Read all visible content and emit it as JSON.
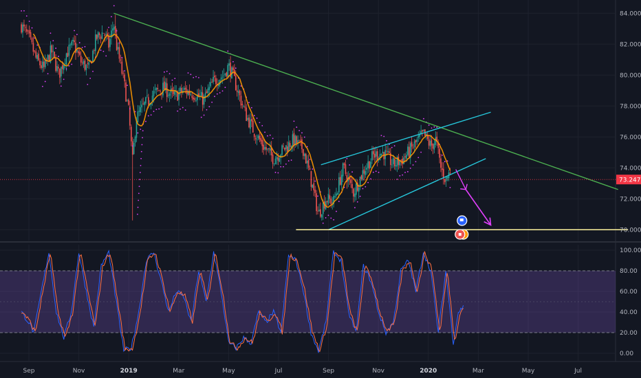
{
  "chart_data": {
    "type": "candlestick",
    "price_axis": {
      "ticks": [
        "84.000",
        "82.000",
        "80.000",
        "78.000",
        "76.000",
        "74.000",
        "72.000",
        "70.000"
      ],
      "tick_values": [
        84,
        82,
        80,
        78,
        76,
        74,
        72,
        70
      ],
      "range": [
        69.3,
        84.5
      ]
    },
    "oscillator_axis": {
      "ticks": [
        "100.00",
        "80.00",
        "60.00",
        "40.00",
        "20.00",
        "0.00"
      ],
      "tick_values": [
        100,
        80,
        60,
        40,
        20,
        0
      ],
      "range": [
        -4,
        104
      ],
      "band": [
        20,
        80
      ]
    },
    "time_axis": {
      "labels": [
        {
          "text": "Sep",
          "month": 0,
          "bold": false
        },
        {
          "text": "Nov",
          "month": 2,
          "bold": false
        },
        {
          "text": "2019",
          "month": 4,
          "bold": true
        },
        {
          "text": "Mar",
          "month": 6,
          "bold": false
        },
        {
          "text": "May",
          "month": 8,
          "bold": false
        },
        {
          "text": "Jul",
          "month": 10,
          "bold": false
        },
        {
          "text": "Sep",
          "month": 12,
          "bold": false
        },
        {
          "text": "Nov",
          "month": 14,
          "bold": false
        },
        {
          "text": "2020",
          "month": 16,
          "bold": true
        },
        {
          "text": "Mar",
          "month": 18,
          "bold": false
        },
        {
          "text": "May",
          "month": 20,
          "bold": false
        },
        {
          "text": "Jul",
          "month": 22,
          "bold": false
        }
      ]
    },
    "last_price": {
      "value": 73.247,
      "label": "73.247"
    },
    "close_path": [
      [
        -0.3,
        83.2
      ],
      [
        0.0,
        82.4
      ],
      [
        0.3,
        81.0
      ],
      [
        0.6,
        80.4
      ],
      [
        0.9,
        81.6
      ],
      [
        1.2,
        80.0
      ],
      [
        1.5,
        81.4
      ],
      [
        1.8,
        82.0
      ],
      [
        2.1,
        80.8
      ],
      [
        2.4,
        80.4
      ],
      [
        2.7,
        82.4
      ],
      [
        3.0,
        82.8
      ],
      [
        3.2,
        81.9
      ],
      [
        3.4,
        83.4
      ],
      [
        3.5,
        82.0
      ],
      [
        3.65,
        80.8
      ],
      [
        3.8,
        79.6
      ],
      [
        4.0,
        77.6
      ],
      [
        4.15,
        74.4
      ],
      [
        4.3,
        77.2
      ],
      [
        4.6,
        78.0
      ],
      [
        5.0,
        78.8
      ],
      [
        5.4,
        79.2
      ],
      [
        5.8,
        78.6
      ],
      [
        6.2,
        79.0
      ],
      [
        6.6,
        78.8
      ],
      [
        7.0,
        78.4
      ],
      [
        7.4,
        79.6
      ],
      [
        7.8,
        80.0
      ],
      [
        8.0,
        80.6
      ],
      [
        8.2,
        79.8
      ],
      [
        8.4,
        78.8
      ],
      [
        8.7,
        77.4
      ],
      [
        9.0,
        76.4
      ],
      [
        9.4,
        75.4
      ],
      [
        9.8,
        74.6
      ],
      [
        10.2,
        75.2
      ],
      [
        10.6,
        75.8
      ],
      [
        11.0,
        75.2
      ],
      [
        11.3,
        73.2
      ],
      [
        11.6,
        71.0
      ],
      [
        11.9,
        72.0
      ],
      [
        12.2,
        71.8
      ],
      [
        12.6,
        74.0
      ],
      [
        13.0,
        72.4
      ],
      [
        13.4,
        73.8
      ],
      [
        13.8,
        74.8
      ],
      [
        14.2,
        75.0
      ],
      [
        14.6,
        74.2
      ],
      [
        15.0,
        74.6
      ],
      [
        15.4,
        75.4
      ],
      [
        15.8,
        76.2
      ],
      [
        16.1,
        75.4
      ],
      [
        16.3,
        75.8
      ],
      [
        16.5,
        74.0
      ],
      [
        16.7,
        73.2
      ],
      [
        16.9,
        73.9
      ]
    ],
    "stoch_path": [
      [
        -0.3,
        40
      ],
      [
        0.0,
        30
      ],
      [
        0.2,
        20
      ],
      [
        0.5,
        60
      ],
      [
        0.8,
        98
      ],
      [
        1.1,
        40
      ],
      [
        1.4,
        15
      ],
      [
        1.7,
        40
      ],
      [
        2.0,
        98
      ],
      [
        2.3,
        60
      ],
      [
        2.6,
        25
      ],
      [
        2.9,
        85
      ],
      [
        3.2,
        98
      ],
      [
        3.5,
        50
      ],
      [
        3.8,
        3
      ],
      [
        4.1,
        5
      ],
      [
        4.4,
        40
      ],
      [
        4.7,
        90
      ],
      [
        5.0,
        98
      ],
      [
        5.3,
        70
      ],
      [
        5.6,
        40
      ],
      [
        5.9,
        60
      ],
      [
        6.2,
        55
      ],
      [
        6.5,
        30
      ],
      [
        6.8,
        80
      ],
      [
        7.1,
        50
      ],
      [
        7.4,
        98
      ],
      [
        7.7,
        60
      ],
      [
        8.0,
        10
      ],
      [
        8.3,
        5
      ],
      [
        8.6,
        15
      ],
      [
        8.9,
        10
      ],
      [
        9.2,
        40
      ],
      [
        9.5,
        30
      ],
      [
        9.8,
        40
      ],
      [
        10.1,
        20
      ],
      [
        10.4,
        95
      ],
      [
        10.7,
        90
      ],
      [
        11.0,
        60
      ],
      [
        11.3,
        20
      ],
      [
        11.6,
        2
      ],
      [
        11.9,
        30
      ],
      [
        12.2,
        98
      ],
      [
        12.5,
        90
      ],
      [
        12.8,
        40
      ],
      [
        13.1,
        20
      ],
      [
        13.4,
        85
      ],
      [
        13.7,
        70
      ],
      [
        14.0,
        40
      ],
      [
        14.3,
        20
      ],
      [
        14.6,
        30
      ],
      [
        14.9,
        80
      ],
      [
        15.2,
        90
      ],
      [
        15.5,
        60
      ],
      [
        15.8,
        98
      ],
      [
        16.1,
        80
      ],
      [
        16.4,
        20
      ],
      [
        16.7,
        80
      ],
      [
        17.0,
        10
      ],
      [
        17.2,
        40
      ],
      [
        17.4,
        45
      ]
    ],
    "trendlines": [
      {
        "name": "",
        "color": "#4caf50",
        "from": [
          3.4,
          84.0
        ],
        "to": [
          23.6,
          72.6
        ]
      },
      {
        "name": "",
        "color": "#26c6da",
        "from": [
          11.7,
          74.2
        ],
        "to": [
          18.5,
          77.6
        ]
      },
      {
        "name": "",
        "color": "#26c6da",
        "from": [
          12.0,
          70.0
        ],
        "to": [
          18.3,
          74.6
        ]
      },
      {
        "name": "",
        "color": "#fff59d",
        "from": [
          10.7,
          70.0
        ],
        "to": [
          24.0,
          70.0
        ]
      }
    ],
    "arrows": [
      {
        "name": "",
        "color": "#e040fb",
        "from": [
          17.5,
          72.6
        ],
        "to": [
          18.5,
          70.3
        ]
      }
    ],
    "last_price_line_color": "#f23645",
    "up_color": "#26a69a",
    "down_color": "#ef5350",
    "ma_color": "#ff9800",
    "sar_color": "#e040fb",
    "k_color": "#2962ff",
    "d_color": "#ff7043",
    "band_color": "#7e57c2"
  }
}
